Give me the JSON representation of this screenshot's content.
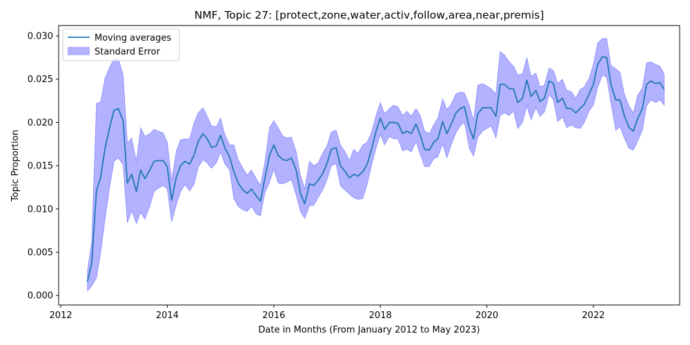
{
  "chart_data": {
    "type": "line",
    "title": "NMF, Topic 27: [protect,zone,water,activ,follow,area,near,premis]",
    "xlabel": "Date in Months (From January 2012 to May 2023)",
    "ylabel": "Topic Proportion",
    "xlim": [
      2011.96,
      2023.62
    ],
    "ylim": [
      -0.0011,
      0.0312
    ],
    "x_ticks": [
      2012,
      2014,
      2016,
      2018,
      2020,
      2022
    ],
    "x_tick_labels": [
      "2012",
      "2014",
      "2016",
      "2018",
      "2020",
      "2022"
    ],
    "y_ticks": [
      0.0,
      0.005,
      0.01,
      0.015,
      0.02,
      0.025,
      0.03
    ],
    "y_tick_labels": [
      "0.000",
      "0.005",
      "0.010",
      "0.015",
      "0.020",
      "0.025",
      "0.030"
    ],
    "grid": false,
    "legend": {
      "position": "top-left",
      "entries": [
        "Moving averages",
        "Standard Error"
      ]
    },
    "colors": {
      "line": "#1f77b4",
      "band": "#0000ff",
      "band_opacity": 0.3
    },
    "series": [
      {
        "name": "Moving averages",
        "x": [
          2012.5,
          2012.58,
          2012.67,
          2012.75,
          2012.83,
          2012.92,
          2013.0,
          2013.08,
          2013.17,
          2013.25,
          2013.33,
          2013.42,
          2013.5,
          2013.58,
          2013.67,
          2013.75,
          2013.83,
          2013.92,
          2014.0,
          2014.08,
          2014.17,
          2014.25,
          2014.33,
          2014.42,
          2014.5,
          2014.58,
          2014.67,
          2014.75,
          2014.83,
          2014.92,
          2015.0,
          2015.08,
          2015.17,
          2015.25,
          2015.33,
          2015.42,
          2015.5,
          2015.58,
          2015.67,
          2015.75,
          2015.83,
          2015.92,
          2016.0,
          2016.08,
          2016.17,
          2016.25,
          2016.33,
          2016.42,
          2016.5,
          2016.58,
          2016.67,
          2016.75,
          2016.83,
          2016.92,
          2017.0,
          2017.08,
          2017.17,
          2017.25,
          2017.33,
          2017.42,
          2017.5,
          2017.58,
          2017.67,
          2017.75,
          2017.83,
          2017.92,
          2018.0,
          2018.08,
          2018.17,
          2018.25,
          2018.33,
          2018.42,
          2018.5,
          2018.58,
          2018.67,
          2018.75,
          2018.83,
          2018.92,
          2019.0,
          2019.08,
          2019.17,
          2019.25,
          2019.33,
          2019.42,
          2019.5,
          2019.58,
          2019.67,
          2019.75,
          2019.83,
          2019.92,
          2020.0,
          2020.08,
          2020.17,
          2020.25,
          2020.33,
          2020.42,
          2020.5,
          2020.58,
          2020.67,
          2020.75,
          2020.83,
          2020.92,
          2021.0,
          2021.08,
          2021.17,
          2021.25,
          2021.33,
          2021.42,
          2021.5,
          2021.58,
          2021.67,
          2021.75,
          2021.83,
          2021.92,
          2022.0,
          2022.08,
          2022.17,
          2022.25,
          2022.33,
          2022.42,
          2022.5,
          2022.58,
          2022.67,
          2022.75,
          2022.83,
          2022.92,
          2023.0,
          2023.08,
          2023.17,
          2023.25,
          2023.33
        ],
        "y": [
          0.0016,
          0.0037,
          0.0121,
          0.0137,
          0.017,
          0.0195,
          0.0214,
          0.0216,
          0.0202,
          0.013,
          0.014,
          0.012,
          0.0145,
          0.0135,
          0.0145,
          0.0155,
          0.0156,
          0.0156,
          0.0149,
          0.011,
          0.0137,
          0.015,
          0.0155,
          0.0152,
          0.0162,
          0.0178,
          0.0187,
          0.0181,
          0.0171,
          0.0173,
          0.0185,
          0.0171,
          0.016,
          0.0143,
          0.013,
          0.0122,
          0.0118,
          0.0123,
          0.0115,
          0.0109,
          0.0135,
          0.0162,
          0.0174,
          0.0162,
          0.0157,
          0.0156,
          0.0159,
          0.0145,
          0.0118,
          0.0106,
          0.0129,
          0.0127,
          0.0133,
          0.0141,
          0.0153,
          0.0169,
          0.0171,
          0.015,
          0.0144,
          0.0136,
          0.014,
          0.0138,
          0.0143,
          0.0151,
          0.0168,
          0.019,
          0.0205,
          0.0192,
          0.02,
          0.02,
          0.0199,
          0.0187,
          0.019,
          0.0187,
          0.0198,
          0.0185,
          0.0169,
          0.0168,
          0.0177,
          0.0181,
          0.0201,
          0.0187,
          0.0198,
          0.0211,
          0.0216,
          0.0218,
          0.0194,
          0.0181,
          0.021,
          0.0217,
          0.0217,
          0.0217,
          0.0207,
          0.0244,
          0.0244,
          0.0239,
          0.0239,
          0.0223,
          0.0228,
          0.0249,
          0.023,
          0.0237,
          0.0224,
          0.0228,
          0.0248,
          0.0245,
          0.0223,
          0.0228,
          0.0216,
          0.0216,
          0.0211,
          0.0216,
          0.0221,
          0.0233,
          0.0244,
          0.0267,
          0.0276,
          0.0275,
          0.0244,
          0.0226,
          0.0226,
          0.0208,
          0.0194,
          0.019,
          0.0204,
          0.0216,
          0.0244,
          0.0248,
          0.0245,
          0.0246,
          0.0238
        ]
      },
      {
        "name": "Standard Error",
        "x": [
          2012.5,
          2012.58,
          2012.67,
          2012.75,
          2012.83,
          2012.92,
          2013.0,
          2013.08,
          2013.17,
          2013.25,
          2013.33,
          2013.42,
          2013.5,
          2013.58,
          2013.67,
          2013.75,
          2013.83,
          2013.92,
          2014.0,
          2014.08,
          2014.17,
          2014.25,
          2014.33,
          2014.42,
          2014.5,
          2014.58,
          2014.67,
          2014.75,
          2014.83,
          2014.92,
          2015.0,
          2015.08,
          2015.17,
          2015.25,
          2015.33,
          2015.42,
          2015.5,
          2015.58,
          2015.67,
          2015.75,
          2015.83,
          2015.92,
          2016.0,
          2016.08,
          2016.17,
          2016.25,
          2016.33,
          2016.42,
          2016.5,
          2016.58,
          2016.67,
          2016.75,
          2016.83,
          2016.92,
          2017.0,
          2017.08,
          2017.17,
          2017.25,
          2017.33,
          2017.42,
          2017.5,
          2017.58,
          2017.67,
          2017.75,
          2017.83,
          2017.92,
          2018.0,
          2018.08,
          2018.17,
          2018.25,
          2018.33,
          2018.42,
          2018.5,
          2018.58,
          2018.67,
          2018.75,
          2018.83,
          2018.92,
          2019.0,
          2019.08,
          2019.17,
          2019.25,
          2019.33,
          2019.42,
          2019.5,
          2019.58,
          2019.67,
          2019.75,
          2019.83,
          2019.92,
          2020.0,
          2020.08,
          2020.17,
          2020.25,
          2020.33,
          2020.42,
          2020.5,
          2020.58,
          2020.67,
          2020.75,
          2020.83,
          2020.92,
          2021.0,
          2021.08,
          2021.17,
          2021.25,
          2021.33,
          2021.42,
          2021.5,
          2021.58,
          2021.67,
          2021.75,
          2021.83,
          2021.92,
          2022.0,
          2022.08,
          2022.17,
          2022.25,
          2022.33,
          2022.42,
          2022.5,
          2022.58,
          2022.67,
          2022.75,
          2022.83,
          2022.92,
          2023.0,
          2023.08,
          2023.17,
          2023.25,
          2023.33
        ],
        "lower": [
          0.0005,
          0.0011,
          0.002,
          0.005,
          0.0088,
          0.0126,
          0.0155,
          0.0159,
          0.0151,
          0.0084,
          0.0098,
          0.0083,
          0.0096,
          0.0088,
          0.0103,
          0.012,
          0.0124,
          0.0127,
          0.0123,
          0.0085,
          0.0105,
          0.012,
          0.0128,
          0.0121,
          0.0128,
          0.0148,
          0.0157,
          0.0153,
          0.0147,
          0.0153,
          0.0166,
          0.0152,
          0.0145,
          0.0112,
          0.0103,
          0.0099,
          0.0097,
          0.0103,
          0.0094,
          0.0092,
          0.0118,
          0.0131,
          0.0146,
          0.013,
          0.0129,
          0.0131,
          0.0134,
          0.0116,
          0.0097,
          0.0089,
          0.0104,
          0.0104,
          0.0113,
          0.0122,
          0.0134,
          0.015,
          0.0152,
          0.0127,
          0.0122,
          0.0117,
          0.0113,
          0.0111,
          0.0112,
          0.0128,
          0.0149,
          0.017,
          0.0186,
          0.0174,
          0.0184,
          0.0181,
          0.0181,
          0.0167,
          0.0169,
          0.0166,
          0.0178,
          0.0163,
          0.0149,
          0.0149,
          0.0158,
          0.016,
          0.0175,
          0.0159,
          0.0174,
          0.0188,
          0.0196,
          0.02,
          0.017,
          0.0161,
          0.0183,
          0.019,
          0.0193,
          0.0196,
          0.0182,
          0.0208,
          0.0211,
          0.0208,
          0.0213,
          0.0193,
          0.02,
          0.0219,
          0.0203,
          0.0217,
          0.0207,
          0.0212,
          0.0232,
          0.0226,
          0.0201,
          0.0206,
          0.0194,
          0.0197,
          0.0194,
          0.0193,
          0.02,
          0.0213,
          0.022,
          0.024,
          0.0255,
          0.0252,
          0.0222,
          0.0191,
          0.0195,
          0.0182,
          0.017,
          0.0168,
          0.0178,
          0.0191,
          0.0219,
          0.0226,
          0.0223,
          0.0226,
          0.022
        ],
        "upper": [
          0.0028,
          0.0062,
          0.0222,
          0.0224,
          0.0251,
          0.0264,
          0.0274,
          0.0274,
          0.0255,
          0.0176,
          0.0182,
          0.0155,
          0.0194,
          0.0184,
          0.0187,
          0.0192,
          0.019,
          0.0188,
          0.0177,
          0.0133,
          0.0167,
          0.018,
          0.0181,
          0.0181,
          0.0199,
          0.0211,
          0.0217,
          0.0207,
          0.0196,
          0.0195,
          0.0205,
          0.0186,
          0.0174,
          0.0174,
          0.0157,
          0.0147,
          0.0139,
          0.0145,
          0.0135,
          0.0127,
          0.0153,
          0.0194,
          0.0202,
          0.0194,
          0.0184,
          0.0182,
          0.0183,
          0.0166,
          0.0139,
          0.0123,
          0.0155,
          0.015,
          0.0153,
          0.0165,
          0.0173,
          0.0189,
          0.0191,
          0.0174,
          0.0167,
          0.0156,
          0.0169,
          0.0164,
          0.0174,
          0.0177,
          0.0188,
          0.0208,
          0.0223,
          0.021,
          0.0216,
          0.022,
          0.0218,
          0.0208,
          0.0213,
          0.0207,
          0.0216,
          0.0208,
          0.019,
          0.0187,
          0.0197,
          0.0205,
          0.0227,
          0.0215,
          0.0221,
          0.0233,
          0.0235,
          0.0234,
          0.022,
          0.0202,
          0.0243,
          0.0245,
          0.0242,
          0.0239,
          0.0233,
          0.0282,
          0.0278,
          0.027,
          0.0265,
          0.0255,
          0.0256,
          0.0275,
          0.0253,
          0.0257,
          0.0241,
          0.0243,
          0.0263,
          0.026,
          0.0245,
          0.025,
          0.0237,
          0.0236,
          0.0228,
          0.0238,
          0.0241,
          0.0251,
          0.0267,
          0.0292,
          0.0297,
          0.0297,
          0.0266,
          0.0262,
          0.0258,
          0.0233,
          0.0219,
          0.0211,
          0.0231,
          0.024,
          0.0269,
          0.027,
          0.0267,
          0.0265,
          0.0256
        ]
      }
    ]
  }
}
